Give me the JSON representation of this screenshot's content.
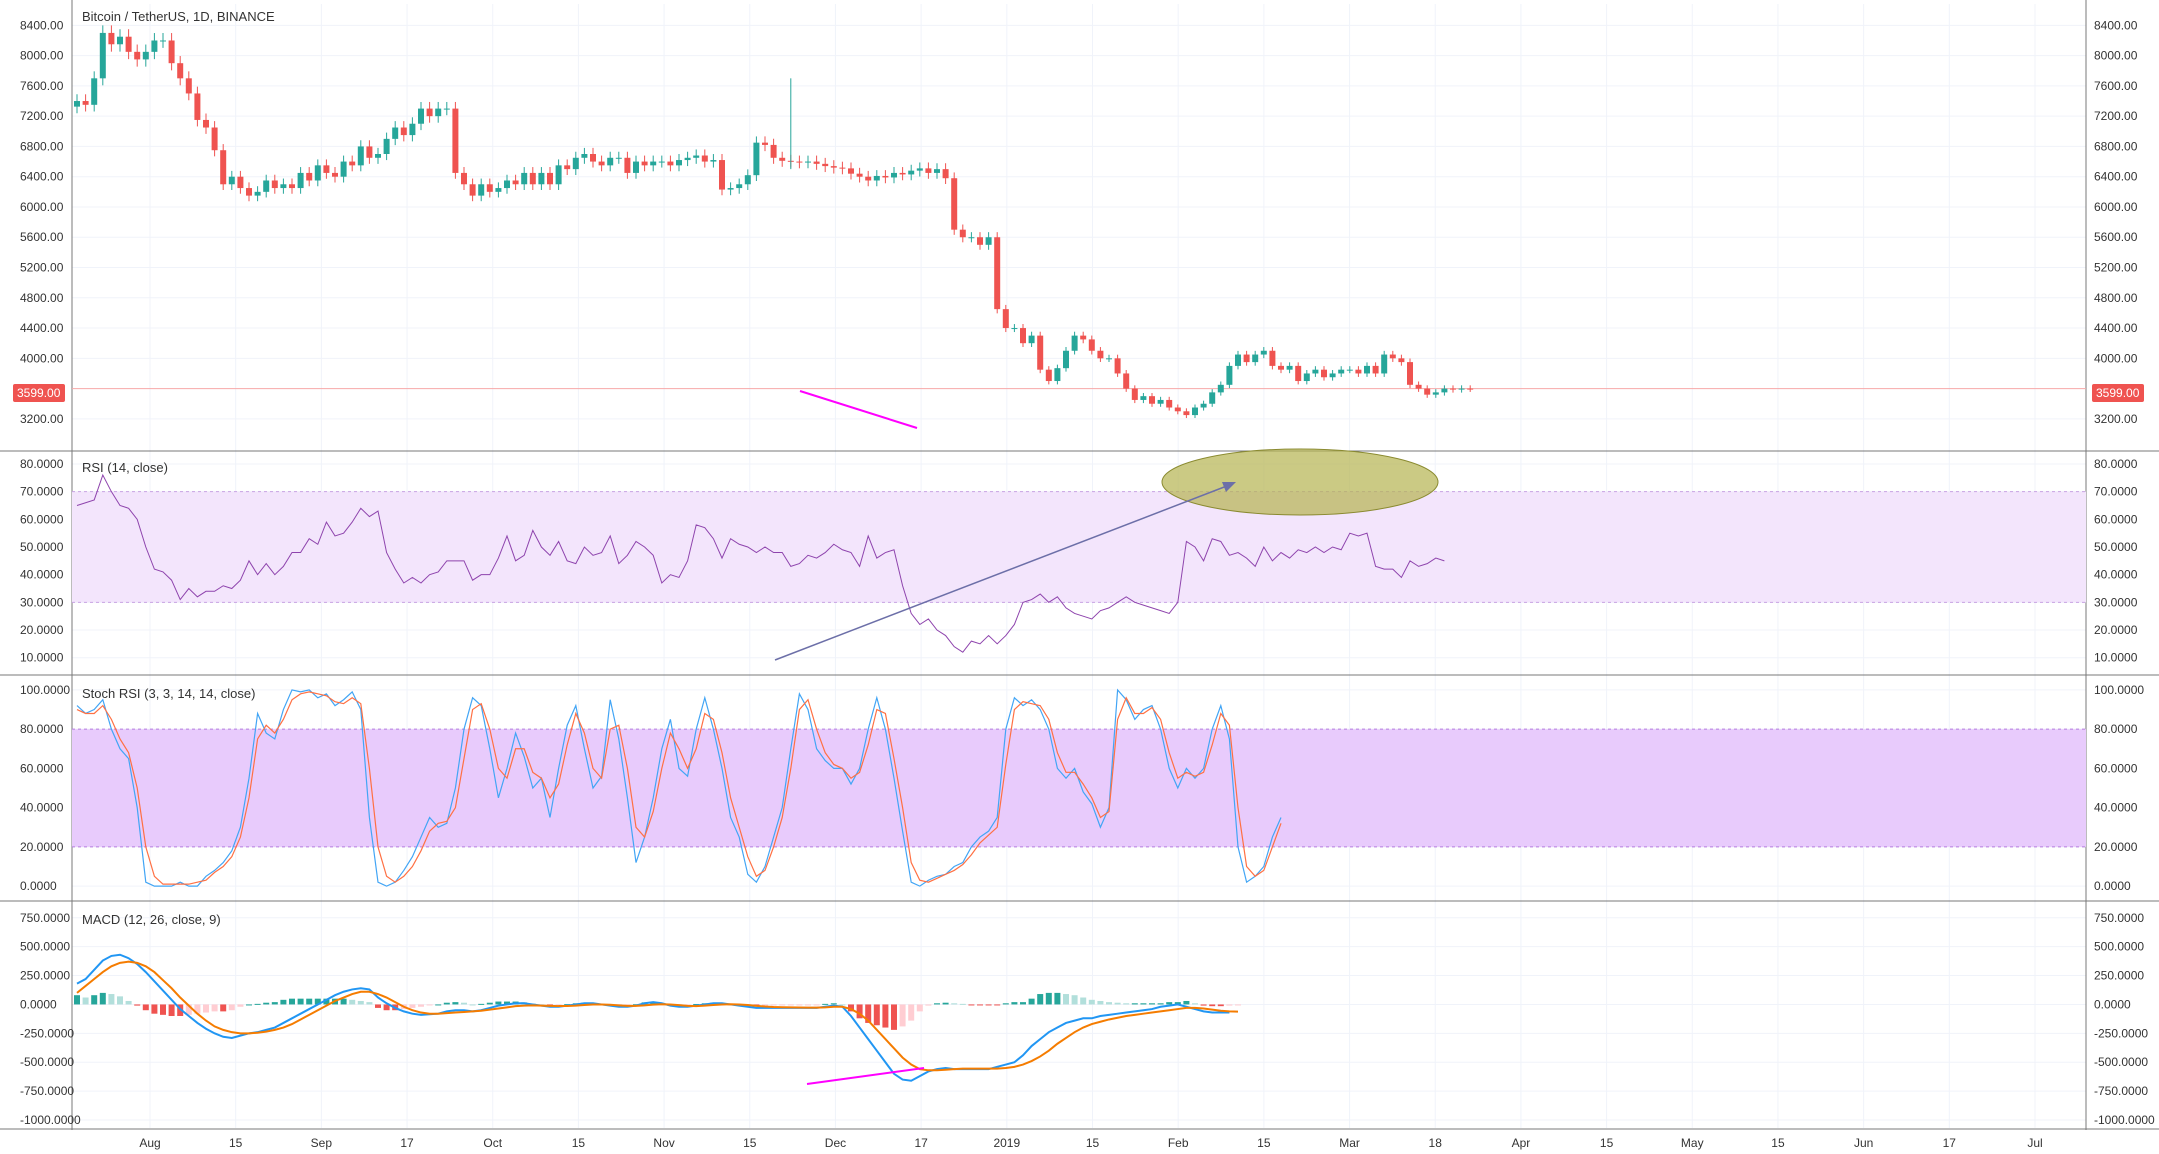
{
  "colors": {
    "up": "#26a69a",
    "down": "#ef5350",
    "grid": "#f0f3fa",
    "border": "#787878",
    "rsi_line": "#8e44ad",
    "rsi_band": "#f3e5fc",
    "stoch_band": "#e8cbfc",
    "stoch_k": "#42a5f5",
    "stoch_d": "#ff7043",
    "macd_line": "#2196f3",
    "signal_line": "#f57c00",
    "divergence": "#ff00ff",
    "arrow": "#6c6fa8",
    "ellipse": "#b5b450"
  },
  "last_price_label": "3599.00",
  "time_labels": [
    "Aug",
    "15",
    "Sep",
    "17",
    "Oct",
    "15",
    "Nov",
    "15",
    "Dec",
    "17",
    "2019",
    "15",
    "Feb",
    "15",
    "Mar",
    "18",
    "Apr",
    "15",
    "May",
    "15",
    "Jun",
    "17",
    "Jul"
  ],
  "chart_data": [
    {
      "type": "candlestick",
      "title": "Bitcoin / TetherUS, 1D, BINANCE",
      "x_start": "2018-07-21",
      "x_end": "2019-07-08",
      "ylim": [
        3000,
        8550
      ],
      "y_ticks": [
        "8400.00",
        "8000.00",
        "7600.00",
        "7200.00",
        "6800.00",
        "6400.00",
        "6000.00",
        "5600.00",
        "5200.00",
        "4800.00",
        "4400.00",
        "4000.00",
        "3200.00"
      ],
      "last_price": 3599,
      "close": [
        7400,
        7350,
        7700,
        8300,
        8150,
        8250,
        8050,
        7950,
        8050,
        8200,
        8200,
        7900,
        7700,
        7500,
        7150,
        7050,
        6750,
        6300,
        6400,
        6250,
        6150,
        6200,
        6350,
        6250,
        6300,
        6250,
        6450,
        6350,
        6550,
        6450,
        6400,
        6600,
        6550,
        6800,
        6650,
        6700,
        6900,
        7050,
        6950,
        7100,
        7300,
        7200,
        7300,
        7300,
        6450,
        6300,
        6150,
        6300,
        6200,
        6250,
        6350,
        6300,
        6450,
        6300,
        6450,
        6300,
        6550,
        6500,
        6650,
        6700,
        6600,
        6550,
        6650,
        6650,
        6450,
        6600,
        6550,
        6600,
        6600,
        6550,
        6620,
        6650,
        6680,
        6600,
        6620,
        6230,
        6250,
        6300,
        6420,
        6850,
        6820,
        6650,
        6610,
        6600,
        6590,
        6600,
        6570,
        6540,
        6520,
        6510,
        6440,
        6400,
        6350,
        6410,
        6390,
        6450,
        6430,
        6480,
        6510,
        6450,
        6500,
        6380,
        5700,
        5600,
        5600,
        5500,
        5600,
        4650,
        4400,
        4400,
        4200,
        4300,
        3850,
        3700,
        3870,
        4100,
        4300,
        4250,
        4100,
        4000,
        4000,
        3800,
        3600,
        3450,
        3500,
        3400,
        3450,
        3350,
        3300,
        3250,
        3350,
        3400,
        3550,
        3650,
        3900,
        4050,
        3950,
        4050,
        4100,
        3900,
        3850,
        3900,
        3700,
        3800,
        3850,
        3750,
        3800,
        3850,
        3850,
        3800,
        3900,
        3800,
        4050,
        4000,
        3950,
        3650,
        3600,
        3520,
        3550,
        3600,
        3590,
        3600,
        3599
      ],
      "high": 8500,
      "low": 3150
    },
    {
      "type": "line",
      "title": "RSI (14, close)",
      "ylim": [
        7,
        80
      ],
      "y_ticks": [
        "80.0000",
        "70.0000",
        "60.0000",
        "50.0000",
        "40.0000",
        "30.0000",
        "20.0000",
        "10.0000"
      ],
      "band": [
        30,
        70
      ],
      "values": [
        65,
        66,
        67,
        76,
        70,
        65,
        64,
        60,
        50,
        42,
        41,
        38,
        31,
        35,
        32,
        34,
        34,
        36,
        35,
        38,
        45,
        40,
        44,
        40,
        43,
        48,
        48,
        53,
        51,
        59,
        54,
        55,
        59,
        64,
        61,
        63,
        48,
        42,
        37,
        39,
        37,
        40,
        41,
        45,
        45,
        45,
        38,
        40,
        40,
        46,
        54,
        45,
        47,
        56,
        50,
        47,
        52,
        45,
        44,
        50,
        47,
        48,
        54,
        44,
        47,
        52,
        50,
        47,
        37,
        40,
        39,
        45,
        58,
        57,
        53,
        46,
        53,
        51,
        50,
        48,
        50,
        48,
        48,
        43,
        44,
        47,
        46,
        48,
        51,
        49,
        48,
        43,
        54,
        46,
        48,
        49,
        36,
        26,
        22,
        24,
        20,
        18,
        14,
        12,
        16,
        15,
        18,
        15,
        18,
        22,
        30,
        31,
        33,
        30,
        32,
        28,
        26,
        25,
        24,
        27,
        28,
        30,
        32,
        30,
        29,
        28,
        27,
        26,
        30,
        52,
        50,
        45,
        53,
        52,
        47,
        48,
        46,
        43,
        50,
        45,
        48,
        46,
        49,
        48,
        50,
        48,
        50,
        49,
        55,
        54,
        55,
        43,
        42,
        42,
        39,
        45,
        43,
        44,
        46,
        45
      ]
    },
    {
      "type": "line",
      "title": "Stoch RSI (3, 3, 14, 14, close)",
      "ylim": [
        -3,
        102
      ],
      "y_ticks": [
        "100.0000",
        "80.0000",
        "60.0000",
        "40.0000",
        "20.0000",
        "0.0000"
      ],
      "band": [
        20,
        80
      ],
      "series": [
        {
          "name": "K",
          "values": [
            92,
            88,
            90,
            95,
            80,
            70,
            65,
            40,
            2,
            0,
            0,
            0,
            2,
            0,
            0,
            5,
            8,
            12,
            18,
            30,
            55,
            88,
            78,
            75,
            90,
            100,
            99,
            100,
            96,
            98,
            92,
            95,
            99,
            90,
            35,
            2,
            0,
            2,
            8,
            15,
            25,
            35,
            30,
            32,
            50,
            80,
            96,
            92,
            70,
            45,
            60,
            78,
            66,
            50,
            55,
            35,
            60,
            82,
            92,
            70,
            50,
            56,
            95,
            75,
            45,
            12,
            25,
            45,
            70,
            85,
            60,
            56,
            80,
            96,
            80,
            60,
            35,
            25,
            6,
            2,
            10,
            25,
            40,
            70,
            98,
            90,
            70,
            64,
            60,
            60,
            52,
            60,
            80,
            96,
            80,
            55,
            28,
            2,
            0,
            3,
            5,
            6,
            10,
            12,
            20,
            25,
            28,
            35,
            80,
            96,
            92,
            95,
            90,
            80,
            60,
            55,
            60,
            48,
            42,
            30,
            40,
            100,
            95,
            85,
            90,
            92,
            80,
            60,
            50,
            60,
            55,
            60,
            80,
            92,
            75,
            20,
            2,
            5,
            10,
            25,
            35
          ]
        },
        {
          "name": "D",
          "values": [
            90,
            88,
            88,
            92,
            85,
            75,
            68,
            50,
            20,
            5,
            1,
            1,
            1,
            1,
            2,
            3,
            7,
            10,
            15,
            25,
            45,
            75,
            82,
            78,
            85,
            95,
            98,
            99,
            98,
            97,
            94,
            93,
            96,
            93,
            60,
            20,
            5,
            2,
            5,
            10,
            18,
            28,
            32,
            33,
            40,
            65,
            90,
            93,
            80,
            60,
            55,
            70,
            70,
            58,
            55,
            45,
            52,
            72,
            88,
            78,
            60,
            55,
            80,
            82,
            60,
            30,
            25,
            38,
            60,
            78,
            70,
            60,
            70,
            88,
            85,
            68,
            45,
            30,
            15,
            5,
            8,
            20,
            35,
            60,
            90,
            95,
            80,
            68,
            62,
            60,
            55,
            58,
            72,
            90,
            88,
            65,
            40,
            12,
            3,
            2,
            4,
            6,
            8,
            11,
            16,
            22,
            26,
            30,
            62,
            90,
            94,
            93,
            92,
            85,
            68,
            58,
            58,
            52,
            45,
            35,
            38,
            85,
            96,
            88,
            88,
            91,
            85,
            68,
            55,
            58,
            56,
            58,
            72,
            88,
            82,
            40,
            10,
            5,
            8,
            20,
            32
          ]
        }
      ]
    },
    {
      "type": "bar+line",
      "title": "MACD (12, 26, close, 9)",
      "ylim": [
        -1000,
        800
      ],
      "y_ticks": [
        "750.0000",
        "500.0000",
        "250.0000",
        "0.0000",
        "-250.0000",
        "-500.0000",
        "-750.0000",
        "-1000.0000"
      ],
      "series": [
        {
          "name": "MACD",
          "values": [
            180,
            220,
            300,
            380,
            420,
            430,
            400,
            350,
            280,
            200,
            120,
            40,
            -40,
            -100,
            -160,
            -210,
            -250,
            -280,
            -290,
            -270,
            -250,
            -240,
            -220,
            -200,
            -160,
            -120,
            -80,
            -40,
            0,
            40,
            80,
            110,
            130,
            140,
            130,
            60,
            10,
            -30,
            -60,
            -80,
            -90,
            -85,
            -80,
            -60,
            -50,
            -50,
            -60,
            -50,
            -30,
            -10,
            0,
            10,
            10,
            0,
            -10,
            -20,
            -20,
            -10,
            0,
            10,
            10,
            0,
            -10,
            -20,
            -20,
            -10,
            10,
            20,
            10,
            -10,
            -20,
            -20,
            -10,
            0,
            10,
            10,
            0,
            -10,
            -20,
            -30,
            -30,
            -30,
            -30,
            -30,
            -30,
            -30,
            -30,
            -20,
            -10,
            -20,
            -100,
            -200,
            -300,
            -400,
            -500,
            -600,
            -650,
            -660,
            -620,
            -580,
            -560,
            -550,
            -560,
            -560,
            -560,
            -560,
            -560,
            -540,
            -520,
            -500,
            -440,
            -360,
            -300,
            -240,
            -200,
            -160,
            -140,
            -120,
            -120,
            -100,
            -90,
            -80,
            -70,
            -60,
            -50,
            -40,
            -20,
            -10,
            0,
            -20,
            -40,
            -60,
            -70,
            -70,
            -70
          ]
        },
        {
          "name": "Signal",
          "values": [
            100,
            160,
            220,
            280,
            330,
            360,
            370,
            360,
            330,
            280,
            210,
            140,
            60,
            -10,
            -80,
            -140,
            -190,
            -220,
            -240,
            -250,
            -250,
            -245,
            -235,
            -220,
            -200,
            -170,
            -130,
            -90,
            -50,
            -10,
            30,
            60,
            90,
            110,
            110,
            90,
            60,
            20,
            -20,
            -50,
            -70,
            -80,
            -80,
            -75,
            -70,
            -65,
            -60,
            -55,
            -45,
            -35,
            -25,
            -15,
            -10,
            -8,
            -10,
            -12,
            -14,
            -13,
            -10,
            -5,
            0,
            0,
            -3,
            -8,
            -12,
            -12,
            -8,
            -2,
            2,
            0,
            -6,
            -12,
            -14,
            -10,
            -5,
            0,
            2,
            0,
            -5,
            -12,
            -18,
            -22,
            -24,
            -25,
            -26,
            -27,
            -28,
            -25,
            -20,
            -20,
            -40,
            -80,
            -140,
            -220,
            -300,
            -380,
            -460,
            -520,
            -560,
            -570,
            -570,
            -565,
            -560,
            -555,
            -555,
            -555,
            -555,
            -555,
            -550,
            -540,
            -520,
            -490,
            -450,
            -400,
            -340,
            -290,
            -240,
            -200,
            -170,
            -150,
            -130,
            -115,
            -100,
            -90,
            -80,
            -70,
            -60,
            -50,
            -40,
            -30,
            -30,
            -35,
            -45,
            -55,
            -60,
            -62
          ]
        },
        {
          "name": "Histogram",
          "values": [
            80,
            60,
            80,
            100,
            90,
            70,
            30,
            -10,
            -50,
            -80,
            -90,
            -100,
            -100,
            -90,
            -80,
            -70,
            -60,
            -60,
            -50,
            -20,
            0,
            5,
            15,
            20,
            40,
            50,
            50,
            50,
            50,
            50,
            50,
            50,
            40,
            30,
            20,
            -30,
            -50,
            -50,
            -40,
            -30,
            -20,
            -5,
            0,
            15,
            20,
            15,
            0,
            5,
            15,
            25,
            25,
            25,
            20,
            8,
            0,
            -8,
            -6,
            3,
            10,
            15,
            10,
            0,
            -7,
            -12,
            -8,
            2,
            18,
            22,
            8,
            -10,
            -14,
            -8,
            4,
            10,
            15,
            10,
            0,
            -5,
            -15,
            -18,
            -12,
            -8,
            -6,
            -5,
            -4,
            -3,
            -2,
            5,
            10,
            0,
            -60,
            -120,
            -160,
            -180,
            -200,
            -220,
            -190,
            -140,
            -60,
            -10,
            10,
            15,
            10,
            5,
            -5,
            -5,
            -5,
            -5,
            10,
            20,
            20,
            50,
            90,
            100,
            100,
            90,
            80,
            60,
            40,
            30,
            20,
            15,
            10,
            10,
            10,
            10,
            10,
            20,
            20,
            30,
            10,
            -10,
            -15,
            -15,
            -10,
            -8
          ]
        }
      ]
    }
  ]
}
